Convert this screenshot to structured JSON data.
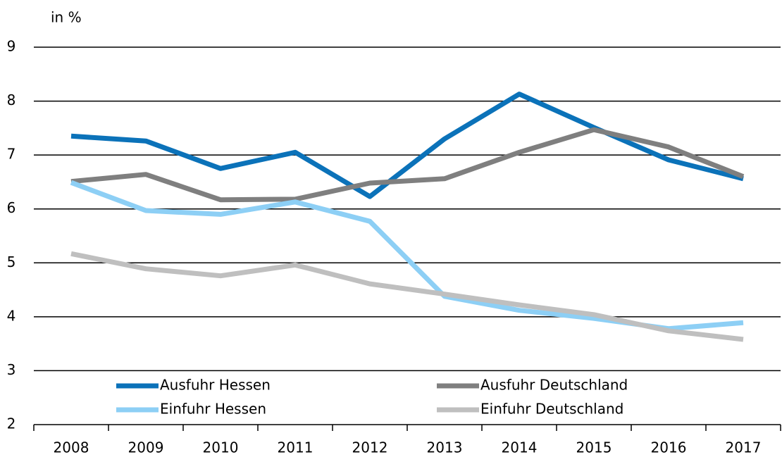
{
  "chart_data": {
    "type": "line",
    "y_label": "in %",
    "categories": [
      "2008",
      "2009",
      "2010",
      "2011",
      "2012",
      "2013",
      "2014",
      "2015",
      "2016",
      "2017"
    ],
    "series": [
      {
        "name": "Ausfuhr Hessen",
        "color": "#0b72b9",
        "values": [
          7.35,
          7.26,
          6.75,
          7.05,
          6.23,
          7.3,
          8.13,
          7.51,
          6.91,
          6.56
        ]
      },
      {
        "name": "Ausfuhr Deutschland",
        "color": "#7f7f7f",
        "values": [
          6.51,
          6.64,
          6.17,
          6.18,
          6.48,
          6.56,
          7.05,
          7.47,
          7.15,
          6.6
        ]
      },
      {
        "name": "Einfuhr Hessen",
        "color": "#8dcff5",
        "values": [
          6.49,
          5.97,
          5.9,
          6.13,
          5.77,
          4.38,
          4.12,
          3.97,
          3.78,
          3.89
        ]
      },
      {
        "name": "Einfuhr Deutschland",
        "color": "#bfbfbf",
        "values": [
          5.17,
          4.89,
          4.76,
          4.96,
          4.61,
          4.42,
          4.22,
          4.04,
          3.74,
          3.58
        ]
      }
    ],
    "ylim": [
      2,
      9
    ],
    "yticks": [
      2,
      3,
      4,
      5,
      6,
      7,
      8,
      9
    ],
    "grid": true,
    "legend": "bottom"
  }
}
